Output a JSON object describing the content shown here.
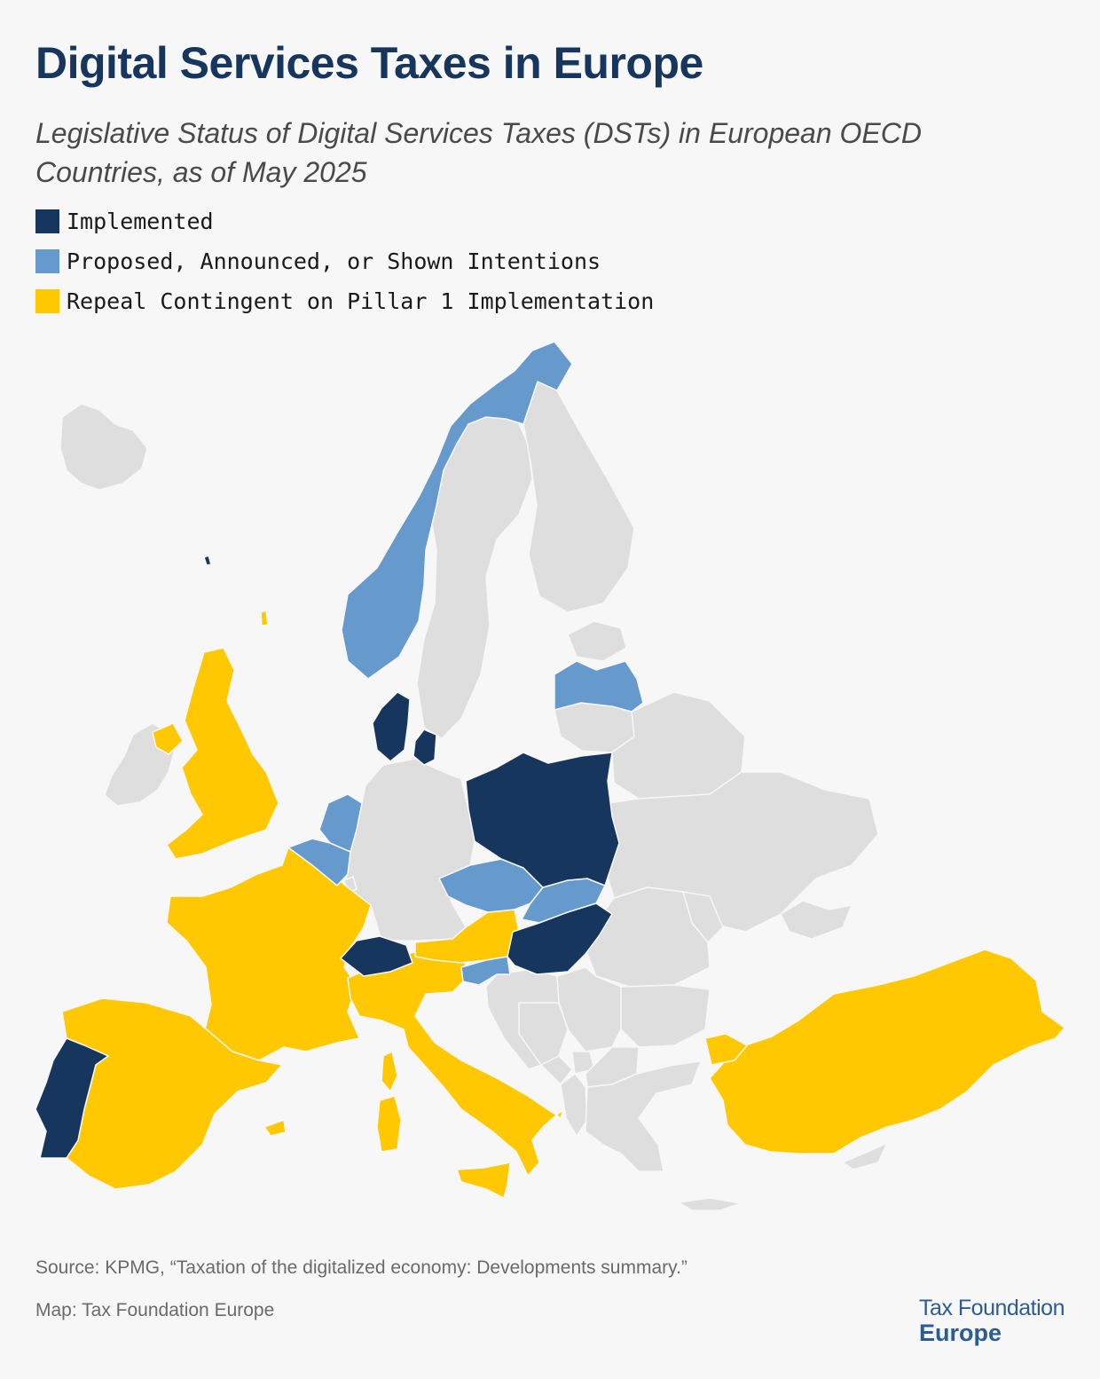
{
  "title": "Digital Services Taxes in Europe",
  "subtitle": "Legislative Status of Digital Services Taxes (DSTs) in European OECD Countries, as of May 2025",
  "legend": [
    {
      "label": "Implemented",
      "color": "#17365d"
    },
    {
      "label": "Proposed, Announced, or Shown Intentions",
      "color": "#6699cc"
    },
    {
      "label": "Repeal Contingent on Pillar 1 Implementation",
      "color": "#ffc800"
    }
  ],
  "colors": {
    "implemented": "#17365d",
    "proposed": "#6699cc",
    "repeal": "#ffc800",
    "other": "#dedede",
    "border": "#f7f7f7"
  },
  "countries": {
    "implemented": [
      "Denmark",
      "Poland",
      "Switzerland",
      "Hungary",
      "Portugal",
      "Faroe Islands"
    ],
    "proposed": [
      "Norway",
      "Latvia",
      "Netherlands",
      "Belgium",
      "Czech Republic",
      "Slovakia",
      "Slovenia"
    ],
    "repeal": [
      "United Kingdom",
      "France",
      "Spain",
      "Italy",
      "Austria",
      "Turkey"
    ]
  },
  "footer": {
    "source": "Source: KPMG, “Taxation of the digitalized economy: Developments summary.”",
    "credit": "Map: Tax Foundation Europe",
    "logo_line1": "Tax Foundation",
    "logo_line2": "Europe"
  }
}
